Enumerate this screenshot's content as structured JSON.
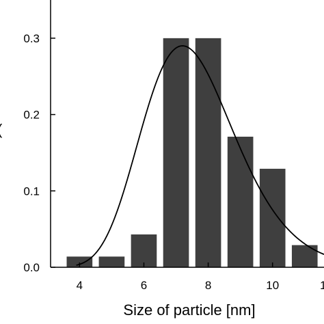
{
  "chart_data": {
    "type": "bar",
    "xlabel": "Size of particle [nm]",
    "ylabel_partial": "(",
    "xlim": [
      3.1,
      11.6
    ],
    "ylim": [
      0,
      0.35
    ],
    "x_ticks": [
      4,
      6,
      8,
      10
    ],
    "x_tick_labels": [
      "4",
      "6",
      "8",
      "10"
    ],
    "x_tick_label_clipped": "1",
    "y_ticks": [
      0.0,
      0.1,
      0.2,
      0.3
    ],
    "y_tick_labels": [
      "0.0",
      "0.1",
      "0.2",
      "0.3"
    ],
    "bar_width": 0.8,
    "bins": [
      {
        "center": 4.0,
        "value": 0.014
      },
      {
        "center": 5.0,
        "value": 0.014
      },
      {
        "center": 6.0,
        "value": 0.043
      },
      {
        "center": 7.0,
        "value": 0.3
      },
      {
        "center": 8.0,
        "value": 0.3
      },
      {
        "center": 9.0,
        "value": 0.171
      },
      {
        "center": 10.0,
        "value": 0.129
      },
      {
        "center": 11.0,
        "value": 0.029
      }
    ],
    "fit_curve": {
      "type": "lognormal",
      "peak_x": 7.2,
      "peak_y": 0.29,
      "x_range": [
        3.9,
        11.6
      ]
    },
    "grid": false,
    "legend": "none"
  }
}
